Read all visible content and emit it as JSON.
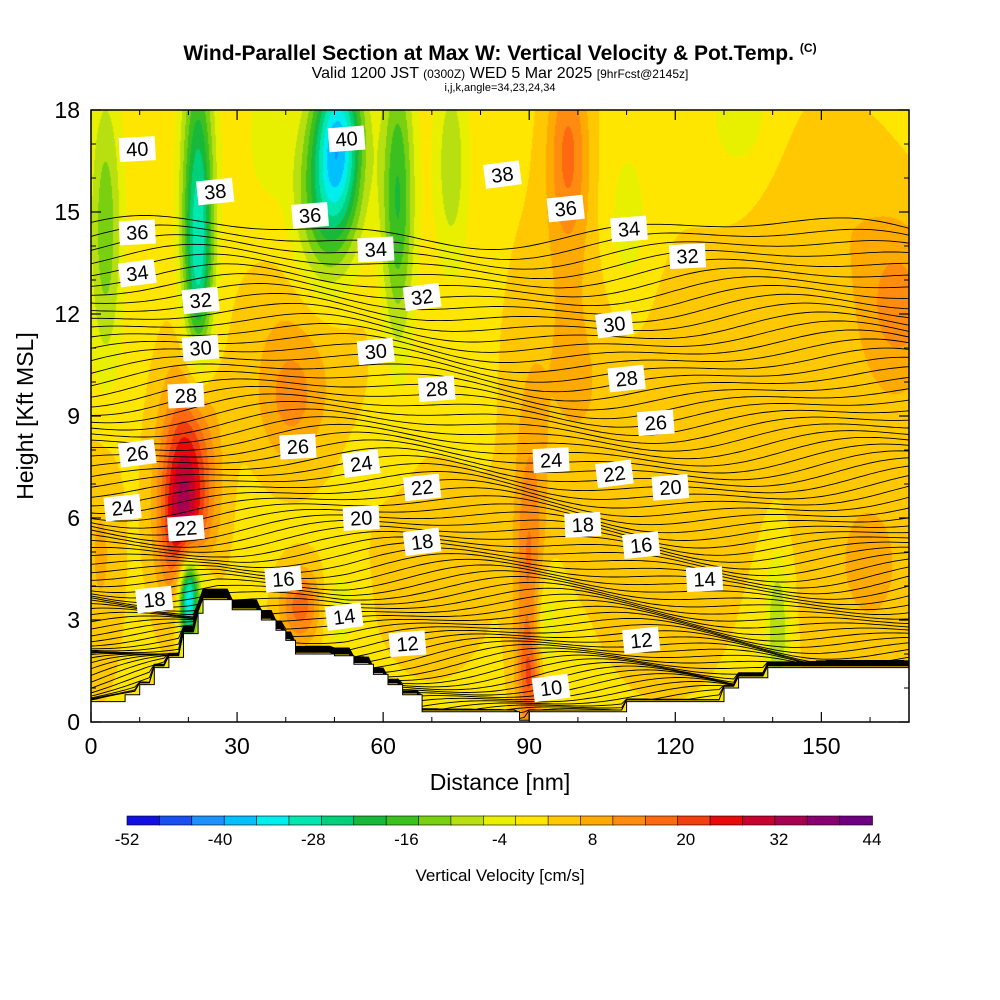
{
  "titles": {
    "main": "Wind-Parallel Section at Max W: Vertical Velocity & Pot.Temp.",
    "copyright": "(C)",
    "line2_a": "Valid 1200 JST",
    "line2_b": "(0300Z)",
    "line2_c": "WED 5 Mar 2025",
    "line2_d": "[9hrFcst@2145z]",
    "line3": "i,j,k,angle=34,23,24,34"
  },
  "chart_data": {
    "type": "heatmap",
    "xlabel": "Distance [nm]",
    "ylabel": "Height [Kft MSL]",
    "xlim": [
      0,
      168
    ],
    "ylim": [
      0,
      18
    ],
    "x_ticks": [
      "0",
      "30",
      "60",
      "90",
      "120",
      "150"
    ],
    "y_ticks": [
      "0",
      "3",
      "6",
      "9",
      "12",
      "15",
      "18"
    ],
    "colorbar": {
      "label": "Vertical Velocity [cm/s]",
      "ticks": [
        "-52",
        "-40",
        "-28",
        "-16",
        "-4",
        "8",
        "20",
        "32",
        "44"
      ],
      "colors": [
        "#1010e0",
        "#1a50f0",
        "#1e90ff",
        "#00c0ff",
        "#00eeee",
        "#00e8b0",
        "#00d07a",
        "#18b83a",
        "#3cc020",
        "#78d010",
        "#b8e010",
        "#e8f000",
        "#ffe600",
        "#ffc800",
        "#ffaa00",
        "#ff8c10",
        "#ff6a10",
        "#f04010",
        "#e80a0a",
        "#c80030",
        "#a80050",
        "#880070",
        "#6c0080"
      ]
    },
    "terrain": [
      [
        0,
        0.6
      ],
      [
        7,
        0.6
      ],
      [
        7,
        0.8
      ],
      [
        10,
        0.8
      ],
      [
        10,
        1.1
      ],
      [
        13,
        1.1
      ],
      [
        13,
        1.6
      ],
      [
        16,
        1.6
      ],
      [
        16,
        1.9
      ],
      [
        19,
        1.9
      ],
      [
        19,
        2.6
      ],
      [
        22,
        2.6
      ],
      [
        22,
        3.2
      ],
      [
        23,
        3.2
      ],
      [
        23,
        3.6
      ],
      [
        29,
        3.6
      ],
      [
        29,
        3.3
      ],
      [
        35,
        3.3
      ],
      [
        35,
        3.0
      ],
      [
        38,
        3.0
      ],
      [
        38,
        2.7
      ],
      [
        40,
        2.7
      ],
      [
        40,
        2.4
      ],
      [
        42,
        2.4
      ],
      [
        42,
        2.0
      ],
      [
        50,
        2.0
      ],
      [
        50,
        1.95
      ],
      [
        54,
        1.95
      ],
      [
        54,
        1.7
      ],
      [
        58,
        1.7
      ],
      [
        58,
        1.4
      ],
      [
        61,
        1.4
      ],
      [
        61,
        1.1
      ],
      [
        64,
        1.1
      ],
      [
        64,
        0.8
      ],
      [
        68,
        0.8
      ],
      [
        68,
        0.3
      ],
      [
        88,
        0.3
      ],
      [
        88,
        0.05
      ],
      [
        90,
        0.05
      ],
      [
        90,
        0.3
      ],
      [
        110,
        0.3
      ],
      [
        110,
        0.6
      ],
      [
        130,
        0.6
      ],
      [
        130,
        1.0
      ],
      [
        133,
        1.0
      ],
      [
        133,
        1.3
      ],
      [
        139,
        1.3
      ],
      [
        139,
        1.6
      ],
      [
        168,
        1.6
      ]
    ],
    "theta_isentropes": [
      10,
      12,
      14,
      16,
      18,
      20,
      22,
      24,
      26,
      28,
      30,
      32,
      34,
      36,
      38,
      40
    ],
    "contour_labels": [
      {
        "text": "40",
        "x": 9.5,
        "y": 16.85
      },
      {
        "text": "40",
        "x": 52.5,
        "y": 17.15
      },
      {
        "text": "38",
        "x": 25.5,
        "y": 15.6
      },
      {
        "text": "38",
        "x": 84.5,
        "y": 16.1
      },
      {
        "text": "36",
        "x": 9.5,
        "y": 14.4
      },
      {
        "text": "36",
        "x": 45,
        "y": 14.9
      },
      {
        "text": "36",
        "x": 97.5,
        "y": 15.1
      },
      {
        "text": "34",
        "x": 9.5,
        "y": 13.2
      },
      {
        "text": "34",
        "x": 58.5,
        "y": 13.9
      },
      {
        "text": "34",
        "x": 110.5,
        "y": 14.5
      },
      {
        "text": "32",
        "x": 22.5,
        "y": 12.4
      },
      {
        "text": "32",
        "x": 68,
        "y": 12.5
      },
      {
        "text": "32",
        "x": 122.5,
        "y": 13.7
      },
      {
        "text": "30",
        "x": 22.5,
        "y": 11.0
      },
      {
        "text": "30",
        "x": 58.5,
        "y": 10.9
      },
      {
        "text": "30",
        "x": 107.5,
        "y": 11.7
      },
      {
        "text": "28",
        "x": 19.5,
        "y": 9.6
      },
      {
        "text": "28",
        "x": 71,
        "y": 9.8
      },
      {
        "text": "28",
        "x": 110,
        "y": 10.1
      },
      {
        "text": "26",
        "x": 9.5,
        "y": 7.9
      },
      {
        "text": "26",
        "x": 42.5,
        "y": 8.1
      },
      {
        "text": "26",
        "x": 116,
        "y": 8.8
      },
      {
        "text": "24",
        "x": 6.5,
        "y": 6.3
      },
      {
        "text": "24",
        "x": 55.5,
        "y": 7.6
      },
      {
        "text": "24",
        "x": 94.5,
        "y": 7.7
      },
      {
        "text": "22",
        "x": 19.5,
        "y": 5.7
      },
      {
        "text": "22",
        "x": 68,
        "y": 6.9
      },
      {
        "text": "22",
        "x": 107.5,
        "y": 7.3
      },
      {
        "text": "20",
        "x": 55.5,
        "y": 6.0
      },
      {
        "text": "20",
        "x": 119,
        "y": 6.9
      },
      {
        "text": "18",
        "x": 13,
        "y": 3.6
      },
      {
        "text": "18",
        "x": 68,
        "y": 5.3
      },
      {
        "text": "18",
        "x": 101,
        "y": 5.8
      },
      {
        "text": "16",
        "x": 39.5,
        "y": 4.2
      },
      {
        "text": "16",
        "x": 113,
        "y": 5.2
      },
      {
        "text": "14",
        "x": 52,
        "y": 3.1
      },
      {
        "text": "14",
        "x": 126,
        "y": 4.2
      },
      {
        "text": "12",
        "x": 65,
        "y": 2.3
      },
      {
        "text": "12",
        "x": 113,
        "y": 2.4
      },
      {
        "text": "10",
        "x": 94.5,
        "y": 1.0
      }
    ],
    "w_field": [
      {
        "x": 20,
        "y": 7.3,
        "sx": 4,
        "sy": 2.2,
        "w": 24
      },
      {
        "x": 18,
        "y": 5.5,
        "sx": 3,
        "sy": 1.6,
        "w": 14
      },
      {
        "x": 43,
        "y": 3.4,
        "sx": 3,
        "sy": 0.8,
        "w": 16
      },
      {
        "x": 41,
        "y": 9.3,
        "sx": 5,
        "sy": 1.4,
        "w": 9
      },
      {
        "x": 44,
        "y": 11.5,
        "sx": 9,
        "sy": 1.8,
        "w": 5
      },
      {
        "x": 90,
        "y": 4.0,
        "sx": 2.2,
        "sy": 3.2,
        "w": 14
      },
      {
        "x": 90,
        "y": 1.3,
        "sx": 1.6,
        "sy": 1.0,
        "w": 10
      },
      {
        "x": 98,
        "y": 16.8,
        "sx": 3,
        "sy": 2.0,
        "w": 14
      },
      {
        "x": 98,
        "y": 10.5,
        "sx": 8,
        "sy": 3.5,
        "w": 5
      },
      {
        "x": 166,
        "y": 12.2,
        "sx": 6,
        "sy": 1.8,
        "w": 11
      },
      {
        "x": 160,
        "y": 4.6,
        "sx": 10,
        "sy": 3.0,
        "w": 6
      },
      {
        "x": 125,
        "y": 10.0,
        "sx": 16,
        "sy": 3.0,
        "w": 4
      },
      {
        "x": 70,
        "y": 4.5,
        "sx": 10,
        "sy": 2.5,
        "w": 3
      },
      {
        "x": 118,
        "y": 3.6,
        "sx": 8,
        "sy": 1.8,
        "w": 5
      },
      {
        "x": 150,
        "y": 15.2,
        "sx": 10,
        "sy": 2.0,
        "w": 5
      },
      {
        "x": 2,
        "y": 5.0,
        "sx": 3,
        "sy": 2.5,
        "w": 6
      },
      {
        "x": 22,
        "y": 15.5,
        "sx": 2.4,
        "sy": 3.2,
        "w": -24
      },
      {
        "x": 22,
        "y": 13.0,
        "sx": 2.0,
        "sy": 2.0,
        "w": -12
      },
      {
        "x": 3,
        "y": 14.5,
        "sx": 2.4,
        "sy": 3.0,
        "w": -14
      },
      {
        "x": 51,
        "y": 17.2,
        "sx": 3.5,
        "sy": 1.8,
        "w": -30
      },
      {
        "x": 48,
        "y": 15.3,
        "sx": 4.5,
        "sy": 2.0,
        "w": -18
      },
      {
        "x": 63,
        "y": 15.4,
        "sx": 2.4,
        "sy": 3.0,
        "w": -20
      },
      {
        "x": 74,
        "y": 16.4,
        "sx": 2.5,
        "sy": 2.2,
        "w": -10
      },
      {
        "x": 20,
        "y": 3.5,
        "sx": 1.4,
        "sy": 0.9,
        "w": -36
      },
      {
        "x": 21,
        "y": 4.2,
        "sx": 2.5,
        "sy": 0.8,
        "w": -14
      },
      {
        "x": 93,
        "y": 2.8,
        "sx": 2.0,
        "sy": 1.2,
        "w": -9
      },
      {
        "x": 141,
        "y": 2.8,
        "sx": 1.8,
        "sy": 1.6,
        "w": -12
      },
      {
        "x": 51,
        "y": 3.3,
        "sx": 2.5,
        "sy": 0.8,
        "w": -7
      },
      {
        "x": 110,
        "y": 14.2,
        "sx": 4,
        "sy": 2.2,
        "w": -6
      },
      {
        "x": 134,
        "y": 17.5,
        "sx": 6,
        "sy": 1.5,
        "w": -5
      },
      {
        "x": 36,
        "y": 17.3,
        "sx": 3,
        "sy": 1.5,
        "w": -5
      }
    ]
  }
}
